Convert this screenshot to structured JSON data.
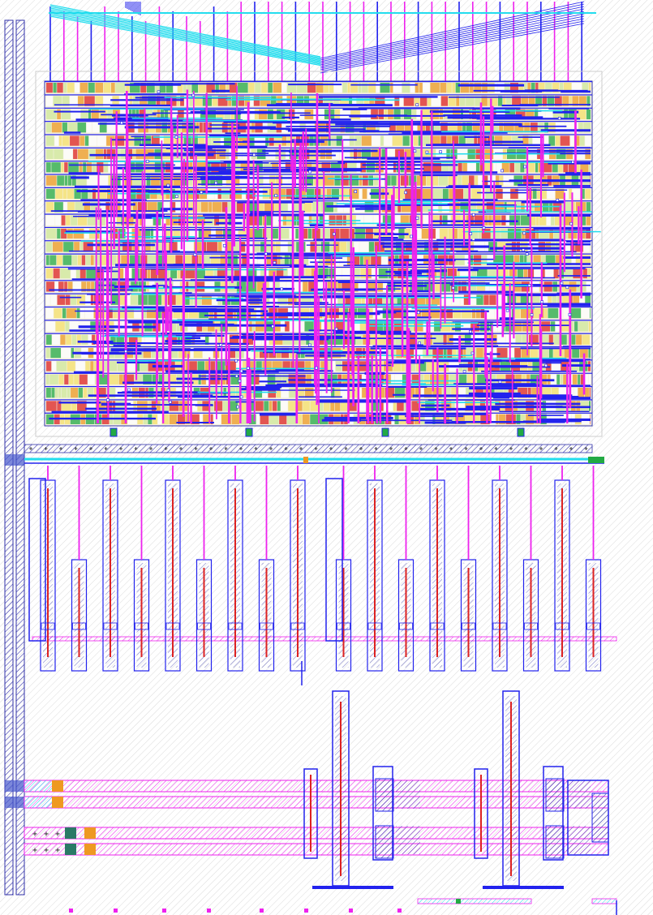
{
  "colors": {
    "background": "#ffffff",
    "metal1": "#2222ee",
    "metal2": "#ee22ee",
    "metal3": "#22ddee",
    "poly": "#dd2222",
    "diffusion": "#22aa44",
    "contact": "#ee9922",
    "well": "#777777",
    "boundary": "#cccccc",
    "hatch": "#3333aa"
  },
  "layers": [
    "metal1",
    "metal2",
    "metal3",
    "poly",
    "diffusion",
    "contact",
    "well"
  ],
  "regions": {
    "digital_block": "standard-cell-array",
    "capacitor_array": "capacitor-fingers",
    "output_stage": "transistor-pairs",
    "power_rails": "vertical-supply-rails"
  },
  "counts": {
    "std_cell_rows": 26,
    "top_pins": 40,
    "cap_fingers": 18,
    "transistor_pairs": 2
  }
}
